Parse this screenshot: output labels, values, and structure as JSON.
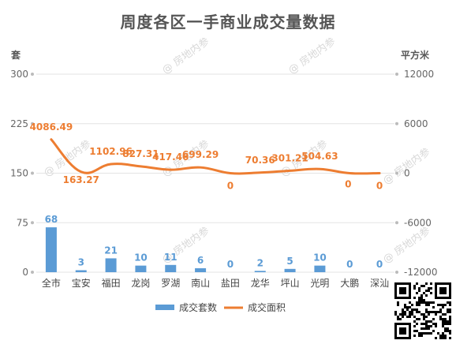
{
  "watermark_text": "@ 房地内参",
  "chart_data": {
    "type": "bar+line",
    "title": "周度各区一手商业成交量数据",
    "categories": [
      "全市",
      "宝安",
      "福田",
      "龙岗",
      "罗湖",
      "南山",
      "盐田",
      "龙华",
      "坪山",
      "光明",
      "大鹏",
      "深汕"
    ],
    "left_axis": {
      "unit": "套",
      "min": 0,
      "max": 300,
      "ticks": [
        0,
        75,
        150,
        225,
        300
      ]
    },
    "right_axis": {
      "unit": "平方米",
      "min": -12000,
      "max": 12000,
      "ticks": [
        -12000,
        -6000,
        0,
        6000,
        12000
      ]
    },
    "series": [
      {
        "name": "成交套数",
        "type": "bar",
        "axis": "left",
        "color": "#5B9BD5",
        "values": [
          68,
          3,
          21,
          10,
          11,
          6,
          0,
          2,
          5,
          10,
          0,
          0
        ],
        "labels": [
          "68",
          "3",
          "21",
          "10",
          "11",
          "6",
          "0",
          "2",
          "5",
          "10",
          "0",
          "0"
        ]
      },
      {
        "name": "成交面积",
        "type": "line",
        "axis": "right",
        "color": "#ED7D31",
        "values": [
          4086.49,
          163.27,
          1102.96,
          827.31,
          417.46,
          699.29,
          0,
          70.36,
          301.21,
          504.63,
          0,
          0
        ],
        "labels": [
          "4086.49",
          "163.27",
          "1102.96",
          "827.31",
          "417.46",
          "699.29",
          "0",
          "70.36",
          "301.21",
          "504.63",
          "0",
          "0"
        ]
      }
    ],
    "legend": {
      "position": "bottom",
      "items": [
        "成交套数",
        "成交面积"
      ]
    },
    "grid": true
  }
}
